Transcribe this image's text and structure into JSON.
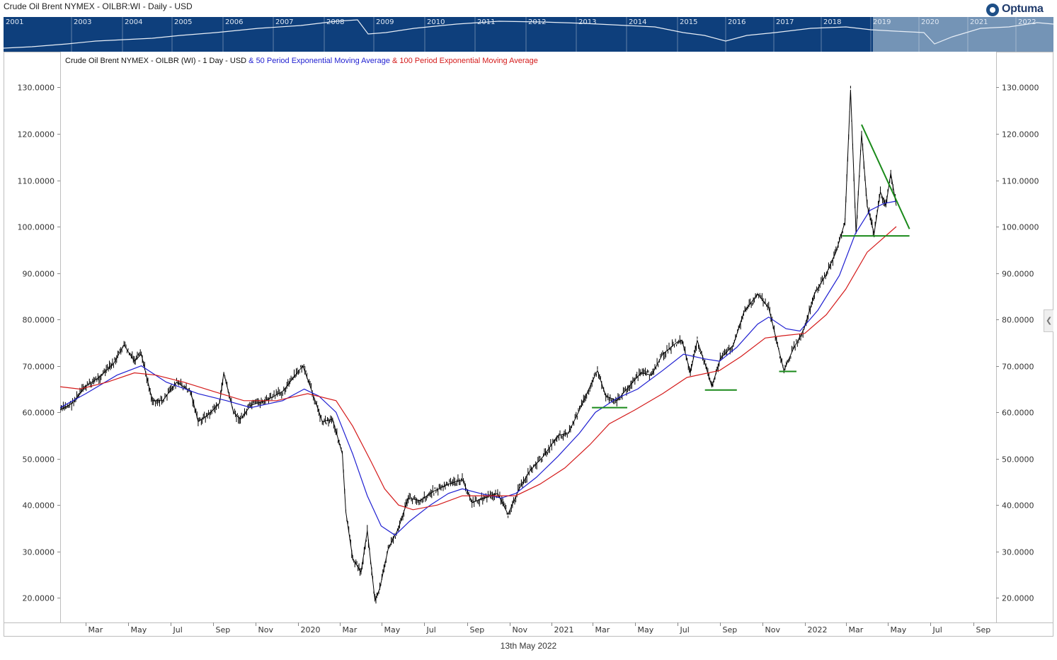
{
  "window_title": "Crude Oil Brent NYMEX - OILBR:WI - Daily - USD",
  "logo_text": "Optuma",
  "overview": {
    "years": [
      "2001",
      "2003",
      "2004",
      "2005",
      "2006",
      "2007",
      "2008",
      "2009",
      "2010",
      "2011",
      "2012",
      "2013",
      "2014",
      "2015",
      "2016",
      "2017",
      "2018",
      "2019",
      "2020",
      "2021",
      "2022"
    ],
    "background_color": "#0e3f7c",
    "highlight_color": "#7f9dbd"
  },
  "legend": {
    "main": "Crude Oil Brent NYMEX - OILBR (WI) - 1 Day - USD",
    "ema50": "& 50 Period Exponential Moving Average",
    "ema100": "& 100 Period Exponential Moving Average"
  },
  "footer_date": "13th May 2022",
  "chart_data": {
    "type": "line",
    "title": "",
    "xlabel": "",
    "ylabel": "",
    "x_range": [
      "2019-01-23",
      "2022-10-04"
    ],
    "ylim": [
      14.7,
      137.7
    ],
    "y_ticks": [
      20,
      30,
      40,
      50,
      60,
      70,
      80,
      90,
      100,
      110,
      120,
      130
    ],
    "y_tick_format_decimals": 4,
    "x_ticks": [
      {
        "label": "Mar",
        "date": "2019-03-01"
      },
      {
        "label": "May",
        "date": "2019-05-01"
      },
      {
        "label": "Jul",
        "date": "2019-07-01"
      },
      {
        "label": "Sep",
        "date": "2019-09-01"
      },
      {
        "label": "Nov",
        "date": "2019-11-01"
      },
      {
        "label": "2020",
        "date": "2020-01-01"
      },
      {
        "label": "Mar",
        "date": "2020-03-01"
      },
      {
        "label": "May",
        "date": "2020-05-01"
      },
      {
        "label": "Jul",
        "date": "2020-07-01"
      },
      {
        "label": "Sep",
        "date": "2020-09-01"
      },
      {
        "label": "Nov",
        "date": "2020-11-01"
      },
      {
        "label": "2021",
        "date": "2021-01-01"
      },
      {
        "label": "Mar",
        "date": "2021-03-01"
      },
      {
        "label": "May",
        "date": "2021-05-01"
      },
      {
        "label": "Jul",
        "date": "2021-07-01"
      },
      {
        "label": "Sep",
        "date": "2021-09-01"
      },
      {
        "label": "Nov",
        "date": "2021-11-01"
      },
      {
        "label": "2022",
        "date": "2022-01-01"
      },
      {
        "label": "Mar",
        "date": "2022-03-01"
      },
      {
        "label": "May",
        "date": "2022-05-01"
      },
      {
        "label": "Jul",
        "date": "2022-07-01"
      },
      {
        "label": "Sep",
        "date": "2022-09-01"
      }
    ],
    "series": [
      {
        "name": "Crude Oil Brent NYMEX - OILBR (WI) - 1 Day - USD",
        "color": "#000000",
        "points": [
          [
            "2019-01-23",
            60.5
          ],
          [
            "2019-02-10",
            62.0
          ],
          [
            "2019-02-28",
            65.5
          ],
          [
            "2019-03-20",
            67.5
          ],
          [
            "2019-04-10",
            70.5
          ],
          [
            "2019-04-25",
            74.5
          ],
          [
            "2019-05-10",
            71.0
          ],
          [
            "2019-05-20",
            72.5
          ],
          [
            "2019-06-05",
            62.5
          ],
          [
            "2019-06-20",
            62.5
          ],
          [
            "2019-07-10",
            66.5
          ],
          [
            "2019-07-30",
            64.5
          ],
          [
            "2019-08-10",
            58.0
          ],
          [
            "2019-08-25",
            59.5
          ],
          [
            "2019-09-10",
            62.0
          ],
          [
            "2019-09-16",
            68.5
          ],
          [
            "2019-09-30",
            60.0
          ],
          [
            "2019-10-10",
            58.5
          ],
          [
            "2019-10-25",
            61.5
          ],
          [
            "2019-11-15",
            62.5
          ],
          [
            "2019-12-10",
            64.5
          ],
          [
            "2019-12-31",
            68.5
          ],
          [
            "2020-01-08",
            70.0
          ],
          [
            "2020-01-20",
            65.0
          ],
          [
            "2020-02-05",
            58.0
          ],
          [
            "2020-02-20",
            58.5
          ],
          [
            "2020-03-05",
            51.0
          ],
          [
            "2020-03-10",
            38.5
          ],
          [
            "2020-03-20",
            28.5
          ],
          [
            "2020-04-01",
            25.5
          ],
          [
            "2020-04-10",
            34.5
          ],
          [
            "2020-04-21",
            19.5
          ],
          [
            "2020-04-28",
            22.0
          ],
          [
            "2020-05-10",
            30.5
          ],
          [
            "2020-05-25",
            35.0
          ],
          [
            "2020-06-08",
            41.5
          ],
          [
            "2020-06-25",
            41.0
          ],
          [
            "2020-07-15",
            43.0
          ],
          [
            "2020-08-05",
            44.5
          ],
          [
            "2020-08-25",
            45.5
          ],
          [
            "2020-09-08",
            40.5
          ],
          [
            "2020-09-25",
            41.5
          ],
          [
            "2020-10-15",
            42.5
          ],
          [
            "2020-10-30",
            38.0
          ],
          [
            "2020-11-15",
            43.5
          ],
          [
            "2020-12-01",
            47.5
          ],
          [
            "2020-12-20",
            50.5
          ],
          [
            "2021-01-10",
            55.0
          ],
          [
            "2021-01-25",
            55.5
          ],
          [
            "2021-02-10",
            60.5
          ],
          [
            "2021-02-25",
            65.5
          ],
          [
            "2021-03-08",
            69.0
          ],
          [
            "2021-03-20",
            63.5
          ],
          [
            "2021-04-05",
            62.5
          ],
          [
            "2021-04-25",
            66.0
          ],
          [
            "2021-05-10",
            68.5
          ],
          [
            "2021-05-25",
            68.0
          ],
          [
            "2021-06-10",
            72.5
          ],
          [
            "2021-06-30",
            75.0
          ],
          [
            "2021-07-08",
            75.5
          ],
          [
            "2021-07-20",
            68.5
          ],
          [
            "2021-07-30",
            75.5
          ],
          [
            "2021-08-10",
            70.5
          ],
          [
            "2021-08-20",
            65.5
          ],
          [
            "2021-09-01",
            71.5
          ],
          [
            "2021-09-20",
            74.5
          ],
          [
            "2021-10-05",
            81.5
          ],
          [
            "2021-10-25",
            85.5
          ],
          [
            "2021-11-10",
            82.5
          ],
          [
            "2021-11-26",
            72.5
          ],
          [
            "2021-12-02",
            69.0
          ],
          [
            "2021-12-15",
            73.5
          ],
          [
            "2021-12-31",
            78.0
          ],
          [
            "2022-01-15",
            85.5
          ],
          [
            "2022-01-31",
            89.5
          ],
          [
            "2022-02-15",
            94.5
          ],
          [
            "2022-02-28",
            101.0
          ],
          [
            "2022-03-04",
            115.0
          ],
          [
            "2022-03-08",
            129.5
          ],
          [
            "2022-03-16",
            98.5
          ],
          [
            "2022-03-24",
            120.0
          ],
          [
            "2022-04-01",
            104.5
          ],
          [
            "2022-04-11",
            98.5
          ],
          [
            "2022-04-20",
            107.5
          ],
          [
            "2022-04-28",
            104.5
          ],
          [
            "2022-05-05",
            111.5
          ],
          [
            "2022-05-13",
            104.5
          ]
        ]
      },
      {
        "name": "50 Period Exponential Moving Average",
        "color": "#1f1fd1",
        "points": [
          [
            "2019-01-23",
            61.0
          ],
          [
            "2019-03-01",
            64.0
          ],
          [
            "2019-04-15",
            68.0
          ],
          [
            "2019-05-20",
            70.0
          ],
          [
            "2019-06-25",
            66.5
          ],
          [
            "2019-08-10",
            64.0
          ],
          [
            "2019-09-20",
            62.5
          ],
          [
            "2019-10-25",
            61.0
          ],
          [
            "2019-12-10",
            62.5
          ],
          [
            "2020-01-10",
            65.0
          ],
          [
            "2020-01-31",
            63.5
          ],
          [
            "2020-02-25",
            60.0
          ],
          [
            "2020-03-20",
            51.0
          ],
          [
            "2020-04-10",
            42.0
          ],
          [
            "2020-04-30",
            35.5
          ],
          [
            "2020-05-20",
            33.5
          ],
          [
            "2020-06-10",
            36.5
          ],
          [
            "2020-07-10",
            40.0
          ],
          [
            "2020-08-05",
            42.5
          ],
          [
            "2020-08-25",
            43.5
          ],
          [
            "2020-09-20",
            42.5
          ],
          [
            "2020-10-20",
            41.5
          ],
          [
            "2020-11-10",
            42.5
          ],
          [
            "2020-12-10",
            46.0
          ],
          [
            "2021-01-10",
            50.5
          ],
          [
            "2021-02-10",
            55.5
          ],
          [
            "2021-03-05",
            60.0
          ],
          [
            "2021-04-05",
            63.0
          ],
          [
            "2021-05-05",
            65.0
          ],
          [
            "2021-06-10",
            69.0
          ],
          [
            "2021-07-10",
            72.5
          ],
          [
            "2021-08-10",
            71.5
          ],
          [
            "2021-08-31",
            71.0
          ],
          [
            "2021-09-25",
            74.0
          ],
          [
            "2021-10-25",
            79.0
          ],
          [
            "2021-11-10",
            80.5
          ],
          [
            "2021-12-05",
            78.0
          ],
          [
            "2021-12-25",
            77.5
          ],
          [
            "2022-01-20",
            82.0
          ],
          [
            "2022-02-20",
            89.5
          ],
          [
            "2022-03-15",
            98.5
          ],
          [
            "2022-04-05",
            103.5
          ],
          [
            "2022-04-25",
            105.0
          ],
          [
            "2022-05-13",
            105.5
          ]
        ]
      },
      {
        "name": "100 Period Exponential Moving Average",
        "color": "#d41a1a",
        "points": [
          [
            "2019-01-23",
            65.5
          ],
          [
            "2019-02-20",
            65.0
          ],
          [
            "2019-04-01",
            66.5
          ],
          [
            "2019-05-10",
            68.5
          ],
          [
            "2019-06-10",
            68.0
          ],
          [
            "2019-07-20",
            66.5
          ],
          [
            "2019-09-01",
            64.5
          ],
          [
            "2019-10-15",
            62.5
          ],
          [
            "2019-12-01",
            62.5
          ],
          [
            "2020-01-15",
            64.0
          ],
          [
            "2020-02-25",
            62.5
          ],
          [
            "2020-03-20",
            57.0
          ],
          [
            "2020-04-15",
            49.5
          ],
          [
            "2020-05-05",
            43.5
          ],
          [
            "2020-05-25",
            40.0
          ],
          [
            "2020-06-15",
            39.0
          ],
          [
            "2020-07-20",
            40.0
          ],
          [
            "2020-08-25",
            42.0
          ],
          [
            "2020-09-30",
            42.0
          ],
          [
            "2020-11-10",
            42.0
          ],
          [
            "2020-12-15",
            44.5
          ],
          [
            "2021-01-20",
            48.0
          ],
          [
            "2021-02-25",
            53.0
          ],
          [
            "2021-03-25",
            57.5
          ],
          [
            "2021-05-01",
            60.5
          ],
          [
            "2021-06-10",
            64.0
          ],
          [
            "2021-07-15",
            67.5
          ],
          [
            "2021-08-31",
            69.0
          ],
          [
            "2021-10-01",
            72.0
          ],
          [
            "2021-11-05",
            76.0
          ],
          [
            "2021-12-01",
            76.5
          ],
          [
            "2022-01-01",
            77.0
          ],
          [
            "2022-02-01",
            81.0
          ],
          [
            "2022-03-01",
            86.5
          ],
          [
            "2022-04-01",
            94.5
          ],
          [
            "2022-05-13",
            100.0
          ]
        ]
      }
    ],
    "annotations": [
      {
        "name": "triangle-upper-trendline",
        "color": "#1a8a1a",
        "from": [
          "2022-03-24",
          122.0
        ],
        "to": [
          "2022-06-01",
          99.5
        ]
      },
      {
        "name": "triangle-support-line",
        "color": "#1a8a1a",
        "from": [
          "2022-02-24",
          98.0
        ],
        "to": [
          "2022-06-01",
          98.0
        ]
      },
      {
        "name": "support-line-mar-2021",
        "color": "#1a8a1a",
        "from": [
          "2021-02-28",
          61.0
        ],
        "to": [
          "2021-04-20",
          61.0
        ]
      },
      {
        "name": "support-line-aug-2021",
        "color": "#1a8a1a",
        "from": [
          "2021-08-10",
          64.8
        ],
        "to": [
          "2021-09-25",
          64.8
        ]
      },
      {
        "name": "support-line-dec-2021",
        "color": "#1a8a1a",
        "from": [
          "2021-11-25",
          68.8
        ],
        "to": [
          "2021-12-20",
          68.8
        ]
      }
    ]
  }
}
